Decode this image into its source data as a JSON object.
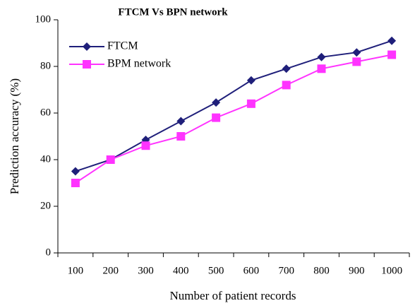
{
  "chart_data": {
    "type": "line",
    "title": "FTCM Vs BPN network",
    "x_label": "Number of patient records",
    "y_label": "Prediction accuracy (%)",
    "categories": [
      "100",
      "200",
      "300",
      "400",
      "500",
      "600",
      "700",
      "800",
      "900",
      "1000"
    ],
    "series": [
      {
        "name": "FTCM",
        "color": "#1f1f7a",
        "marker": "diamond",
        "values": [
          35,
          40,
          48.5,
          56.5,
          64.5,
          74,
          79,
          84,
          86,
          91
        ]
      },
      {
        "name": "BPM network",
        "color": "#ff33ff",
        "marker": "square",
        "values": [
          30,
          40,
          46,
          50,
          58,
          64,
          72,
          79,
          82,
          85
        ]
      }
    ],
    "ylim": [
      0,
      100
    ],
    "yticks": [
      0,
      20,
      40,
      60,
      80,
      100
    ],
    "grid": false,
    "legend": "upper left"
  }
}
